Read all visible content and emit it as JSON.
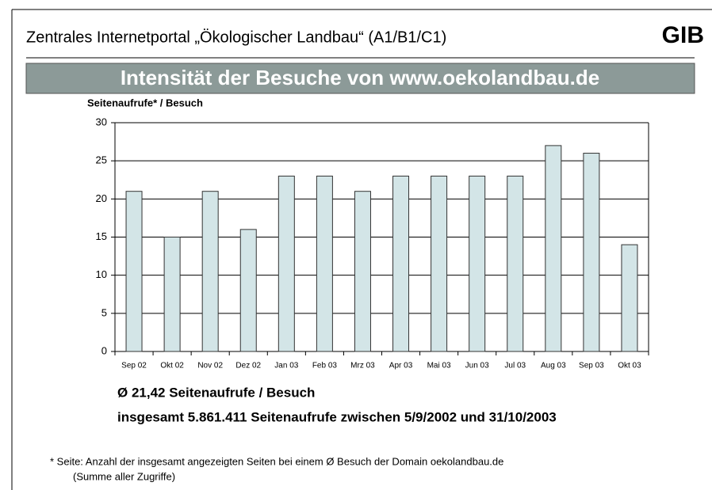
{
  "header": {
    "title": "Zentrales Internetportal „Ökologischer Landbau“ (A1/B1/C1)",
    "logo": "GIB"
  },
  "chart_data": {
    "type": "bar",
    "title": "Intensität der Besuche von www.oekolandbau.de",
    "y_label": "Seitenaufrufe* / Besuch",
    "categories": [
      "Sep 02",
      "Okt 02",
      "Nov 02",
      "Dez 02",
      "Jan 03",
      "Feb 03",
      "Mrz 03",
      "Apr 03",
      "Mai 03",
      "Jun 03",
      "Jul 03",
      "Aug 03",
      "Sep 03",
      "Okt 03"
    ],
    "values": [
      21,
      15,
      21,
      16,
      23,
      23,
      21,
      23,
      23,
      23,
      23,
      27,
      26,
      14
    ],
    "color": "#d3e5e7",
    "ylim": [
      0,
      30
    ],
    "yticks": [
      0,
      5,
      10,
      15,
      20,
      25,
      30
    ],
    "grid": true,
    "annotations": [
      "Ø 21,42 Seitenaufrufe / Besuch",
      "insgesamt 5.861.411 Seitenaufrufe zwischen 5/9/2002 und 31/10/2003"
    ]
  },
  "footnote": [
    "* Seite: Anzahl der insgesamt angezeigten Seiten bei einem Ø Besuch der Domain oekolandbau.de",
    "(Summe aller Zugriffe)"
  ]
}
